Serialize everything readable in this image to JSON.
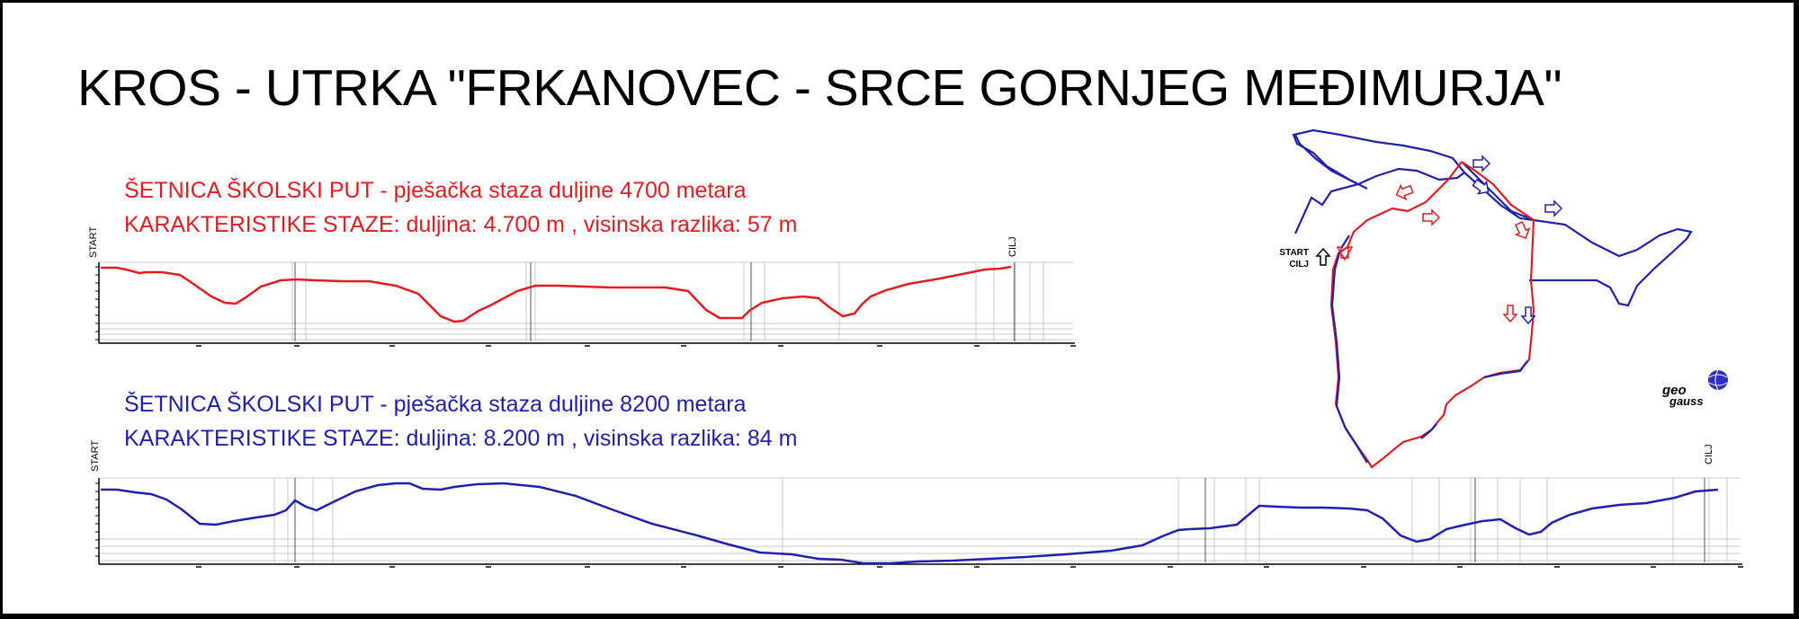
{
  "title": "KROS - UTRKA \"FRKANOVEC - SRCE GORNJEG MEĐIMURJA\"",
  "routes": [
    {
      "line1_bold": "ŠETNICA ŠKOLSKI PUT",
      "line1_rest": " - pješačka staza duljine 4700 metara",
      "line2_bold": "KARAKTERISTIKE STAZE:",
      "line2_rest": " duljina: 4.700 m , visinska razlika: 57 m",
      "start_label": "START",
      "finish_label": "CILJ",
      "color": "#e21c21"
    },
    {
      "line1_bold": "ŠETNICA ŠKOLSKI PUT",
      "line1_rest": " - pješačka staza duljine 8200 metara",
      "line2_bold": "KARAKTERISTIKE STAZE:",
      "line2_rest": " duljina: 8.200 m , visinska razlika: 84 m",
      "start_label": "START",
      "finish_label": "CILJ",
      "color": "#2020b0"
    }
  ],
  "map": {
    "start_label": "START",
    "finish_label": "CILJ"
  },
  "logo": {
    "top": "geo",
    "bottom": "gauss"
  }
}
